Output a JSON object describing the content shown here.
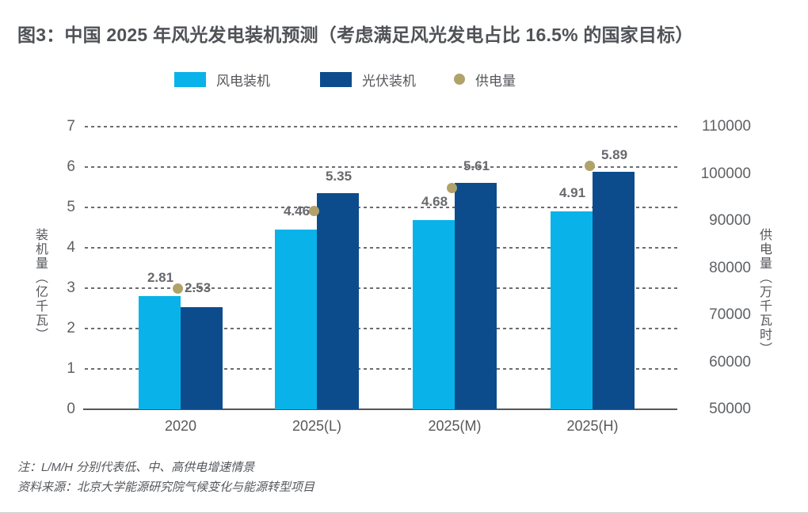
{
  "title": "图3：中国 2025 年风光发电装机预测（考虑满足风光发电占比 16.5% 的国家目标）",
  "legend": {
    "items": [
      {
        "label": "风电装机",
        "marker": "swatch",
        "color": "#09b3ea"
      },
      {
        "label": "光伏装机",
        "marker": "swatch",
        "color": "#0c4c8c"
      },
      {
        "label": "供电量",
        "marker": "dot",
        "color": "#b1a26a"
      }
    ]
  },
  "chart_data": {
    "type": "bar",
    "subtype": "grouped bars with scatter overlay, dual y-axis",
    "categories": [
      "2020",
      "2025(L)",
      "2025(M)",
      "2025(H)"
    ],
    "series": [
      {
        "name": "风电装机",
        "type": "bar",
        "axis": "left",
        "color": "#09b3ea",
        "values": [
          2.81,
          4.46,
          4.68,
          4.91
        ],
        "labels": [
          "2.81",
          "4.46",
          "4.68",
          "4.91"
        ]
      },
      {
        "name": "光伏装机",
        "type": "bar",
        "axis": "left",
        "color": "#0c4c8c",
        "values": [
          2.53,
          5.35,
          5.61,
          5.89
        ],
        "labels": [
          "2.53",
          "5.35",
          "5.61",
          "5.89"
        ]
      },
      {
        "name": "供电量",
        "type": "scatter",
        "axis": "right",
        "color": "#b1a26a",
        "values": [
          75700,
          92100,
          96900,
          101700
        ],
        "approximate": true,
        "labels": [
          null,
          null,
          null,
          null
        ]
      }
    ],
    "left_axis": {
      "title": "装机量（亿千瓦）",
      "min": 0,
      "max": 7,
      "step": 1,
      "ticks": [
        "0",
        "1",
        "2",
        "3",
        "4",
        "5",
        "6",
        "7"
      ]
    },
    "right_axis": {
      "title": "供电量（万千瓦时）",
      "min": 50000,
      "max": 110000,
      "step": 10000,
      "ticks": [
        "50000",
        "60000",
        "70000",
        "80000",
        "90000",
        "100000",
        "110000"
      ]
    },
    "grid": "horizontal dashed gridlines at each left-axis step, solid baseline at 0",
    "legend_position": "top"
  },
  "notes": {
    "line1": "注：L/M/H 分别代表低、中、高供电增速情景",
    "line2": "资料来源：北京大学能源研究院气候变化与能源转型项目"
  }
}
